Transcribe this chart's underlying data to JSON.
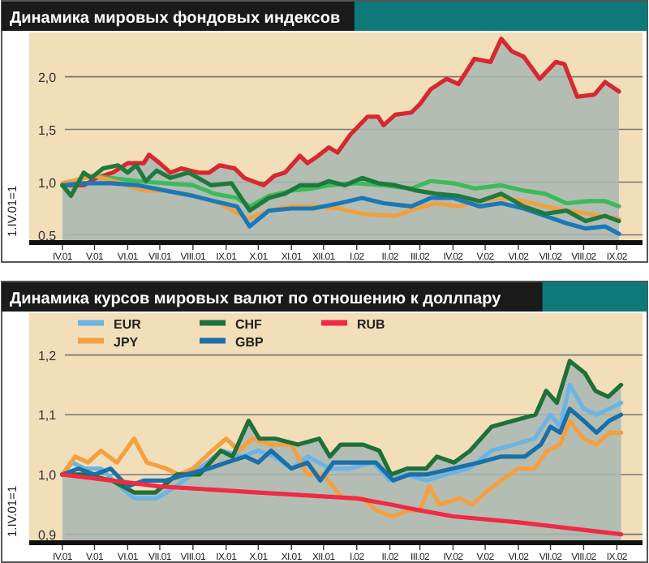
{
  "chart_data": [
    {
      "type": "line",
      "title": "Динамика мировых фондовых индексов",
      "ylabel": "1.IV.01=1",
      "xlim": [
        "2001-03-01",
        "2002-09-25"
      ],
      "ylim": [
        0.45,
        2.42
      ],
      "xticks": [
        {
          "value": "2001-04-01",
          "label": "IV.01"
        },
        {
          "value": "2001-05-01",
          "label": "V.01"
        },
        {
          "value": "2001-06-01",
          "label": "VI.01"
        },
        {
          "value": "2001-07-01",
          "label": "VII.01"
        },
        {
          "value": "2001-08-01",
          "label": "VIII.01"
        },
        {
          "value": "2001-09-01",
          "label": "IX.01"
        },
        {
          "value": "2001-10-01",
          "label": "X.01"
        },
        {
          "value": "2001-11-01",
          "label": "XI.01"
        },
        {
          "value": "2001-12-01",
          "label": "XII.01"
        },
        {
          "value": "2002-01-01",
          "label": "I.02"
        },
        {
          "value": "2002-02-01",
          "label": "II.02"
        },
        {
          "value": "2002-03-01",
          "label": "III.02"
        },
        {
          "value": "2002-04-01",
          "label": "IV.02"
        },
        {
          "value": "2002-05-01",
          "label": "V.02"
        },
        {
          "value": "2002-06-01",
          "label": "VI.02"
        },
        {
          "value": "2002-07-01",
          "label": "VII.02"
        },
        {
          "value": "2002-08-01",
          "label": "VIII.02"
        },
        {
          "value": "2002-09-01",
          "label": "IX.02"
        }
      ],
      "yticks": [
        {
          "value": 0.5,
          "label": "0,5"
        },
        {
          "value": 1,
          "label": "1,0"
        },
        {
          "value": 1.5,
          "label": "1,5"
        },
        {
          "value": 2,
          "label": "2,0"
        }
      ],
      "grid": "y",
      "legend": false,
      "series": [
        {
          "type": "area",
          "color": "#d7282f",
          "x": [
            "2001-04-01",
            "2001-04-21",
            "2001-05-03",
            "2001-05-18",
            "2001-06-01",
            "2001-06-16",
            "2001-06-21",
            "2001-07-01",
            "2001-07-11",
            "2001-07-21",
            "2001-08-06",
            "2001-08-16",
            "2001-08-26",
            "2001-09-09",
            "2001-09-18",
            "2001-10-06",
            "2001-10-16",
            "2001-10-26",
            "2001-11-09",
            "2001-11-16",
            "2001-11-26",
            "2001-12-06",
            "2001-12-14",
            "2001-12-26",
            "2002-01-11",
            "2002-01-21",
            "2002-01-26",
            "2002-02-06",
            "2002-02-21",
            "2002-03-01",
            "2002-03-11",
            "2002-03-26",
            "2002-04-06",
            "2002-04-21",
            "2002-05-06",
            "2002-05-16",
            "2002-05-26",
            "2002-06-06",
            "2002-06-21",
            "2002-07-06",
            "2002-07-14",
            "2002-07-26",
            "2002-08-11",
            "2002-08-21",
            "2002-09-03"
          ],
          "values": [
            0.97,
            0.97,
            1.04,
            1.09,
            1.18,
            1.18,
            1.26,
            1.18,
            1.09,
            1.13,
            1.09,
            1.09,
            1.16,
            1.13,
            1.04,
            0.97,
            1.06,
            1.09,
            1.25,
            1.18,
            1.25,
            1.33,
            1.28,
            1.45,
            1.62,
            1.62,
            1.54,
            1.64,
            1.66,
            1.74,
            1.88,
            1.98,
            1.93,
            2.17,
            2.14,
            2.36,
            2.24,
            2.19,
            1.98,
            2.14,
            2.12,
            1.81,
            1.83,
            1.95,
            1.86
          ]
        },
        {
          "color": "#3dba5a",
          "x": [
            "2001-04-01",
            "2001-04-26",
            "2001-05-16",
            "2001-06-11",
            "2001-07-06",
            "2001-08-01",
            "2001-08-21",
            "2001-09-11",
            "2001-09-23",
            "2001-10-11",
            "2001-11-01",
            "2001-11-21",
            "2001-12-06",
            "2002-01-01",
            "2002-01-26",
            "2002-02-21",
            "2002-03-11",
            "2002-04-01",
            "2002-04-21",
            "2002-05-16",
            "2002-06-06",
            "2002-06-26",
            "2002-07-16",
            "2002-08-06",
            "2002-08-21",
            "2002-09-03"
          ],
          "values": [
            0.97,
            1.06,
            1.04,
            1.01,
            0.99,
            0.97,
            0.89,
            0.85,
            0.77,
            0.87,
            0.92,
            0.94,
            0.97,
            0.99,
            0.97,
            0.94,
            1.01,
            0.99,
            0.94,
            0.97,
            0.92,
            0.89,
            0.8,
            0.82,
            0.82,
            0.77
          ]
        },
        {
          "color": "#f0a040",
          "x": [
            "2001-04-01",
            "2001-05-01",
            "2001-05-26",
            "2001-06-16",
            "2001-07-06",
            "2001-08-01",
            "2001-08-26",
            "2001-09-21",
            "2001-10-11",
            "2001-11-01",
            "2001-11-21",
            "2001-12-16",
            "2002-01-06",
            "2002-02-06",
            "2002-02-26",
            "2002-03-16",
            "2002-04-06",
            "2002-04-26",
            "2002-05-16",
            "2002-06-06",
            "2002-06-26",
            "2002-07-16",
            "2002-08-06",
            "2002-09-03"
          ],
          "values": [
            0.99,
            1.06,
            0.99,
            0.92,
            0.92,
            0.87,
            0.8,
            0.65,
            0.73,
            0.77,
            0.77,
            0.75,
            0.7,
            0.68,
            0.75,
            0.8,
            0.77,
            0.82,
            0.85,
            0.82,
            0.77,
            0.73,
            0.7,
            0.65
          ]
        },
        {
          "color": "#1a79b8",
          "x": [
            "2001-04-01",
            "2001-04-21",
            "2001-05-16",
            "2001-06-11",
            "2001-07-06",
            "2001-08-01",
            "2001-08-21",
            "2001-09-11",
            "2001-09-23",
            "2001-10-11",
            "2001-11-01",
            "2001-11-21",
            "2001-12-16",
            "2002-01-06",
            "2002-01-26",
            "2002-02-21",
            "2002-03-11",
            "2002-04-01",
            "2002-04-26",
            "2002-05-16",
            "2002-06-06",
            "2002-06-26",
            "2002-07-16",
            "2002-08-03",
            "2002-08-21",
            "2002-09-03"
          ],
          "values": [
            0.97,
            0.99,
            0.99,
            0.97,
            0.92,
            0.87,
            0.82,
            0.77,
            0.58,
            0.73,
            0.75,
            0.75,
            0.8,
            0.85,
            0.8,
            0.77,
            0.85,
            0.85,
            0.77,
            0.8,
            0.75,
            0.68,
            0.61,
            0.56,
            0.58,
            0.51
          ]
        },
        {
          "color": "#1e7a3c",
          "x": [
            "2001-04-01",
            "2001-04-09",
            "2001-04-21",
            "2001-04-28",
            "2001-05-09",
            "2001-05-23",
            "2001-06-01",
            "2001-06-09",
            "2001-06-18",
            "2001-06-28",
            "2001-07-11",
            "2001-07-28",
            "2001-08-18",
            "2001-09-06",
            "2001-09-23",
            "2001-10-11",
            "2001-10-26",
            "2001-11-09",
            "2001-11-26",
            "2001-12-06",
            "2001-12-21",
            "2002-01-06",
            "2002-01-21",
            "2002-02-06",
            "2002-02-26",
            "2002-03-16",
            "2002-04-06",
            "2002-04-26",
            "2002-05-16",
            "2002-06-06",
            "2002-06-26",
            "2002-07-16",
            "2002-08-03",
            "2002-08-21",
            "2002-09-03"
          ],
          "values": [
            0.97,
            0.87,
            1.09,
            1.04,
            1.13,
            1.16,
            1.09,
            1.16,
            1.01,
            1.11,
            1.04,
            1.09,
            0.97,
            0.99,
            0.73,
            0.85,
            0.89,
            0.97,
            0.97,
            1.01,
            0.97,
            1.04,
            0.99,
            0.97,
            0.92,
            0.89,
            0.87,
            0.82,
            0.89,
            0.77,
            0.7,
            0.73,
            0.63,
            0.68,
            0.63
          ]
        }
      ]
    },
    {
      "type": "line",
      "title": "Динамика курсов мировых валют по отношению к доллпару",
      "ylabel": "1.IV.01=1",
      "xlim": [
        "2001-03-01",
        "2002-09-25"
      ],
      "ylim": [
        0.89,
        1.27
      ],
      "xticks": [
        {
          "value": "2001-04-01",
          "label": "IV.01"
        },
        {
          "value": "2001-05-01",
          "label": "V.01"
        },
        {
          "value": "2001-06-01",
          "label": "VI.01"
        },
        {
          "value": "2001-07-01",
          "label": "VII.01"
        },
        {
          "value": "2001-08-01",
          "label": "VIII.01"
        },
        {
          "value": "2001-09-01",
          "label": "IX.01"
        },
        {
          "value": "2001-10-01",
          "label": "X.01"
        },
        {
          "value": "2001-11-01",
          "label": "XI.01"
        },
        {
          "value": "2001-12-01",
          "label": "XII.01"
        },
        {
          "value": "2002-01-01",
          "label": "I.02"
        },
        {
          "value": "2002-02-01",
          "label": "II.02"
        },
        {
          "value": "2002-03-01",
          "label": "III.02"
        },
        {
          "value": "2002-04-01",
          "label": "IV.02"
        },
        {
          "value": "2002-05-01",
          "label": "V.02"
        },
        {
          "value": "2002-06-01",
          "label": "VI.02"
        },
        {
          "value": "2002-07-01",
          "label": "VII.02"
        },
        {
          "value": "2002-08-01",
          "label": "VIII.02"
        },
        {
          "value": "2002-09-01",
          "label": "IX.02"
        }
      ],
      "yticks": [
        {
          "value": 0.9,
          "label": "0,9"
        },
        {
          "value": 1,
          "label": "1,0"
        },
        {
          "value": 1.1,
          "label": "1,1"
        },
        {
          "value": 1.2,
          "label": "1,2"
        }
      ],
      "grid": "y",
      "legend": "top left",
      "series": [
        {
          "name": "EUR",
          "color": "#6cb4e4",
          "x": [
            "2001-04-01",
            "2001-04-10",
            "2001-04-22",
            "2001-05-07",
            "2001-05-25",
            "2001-06-07",
            "2001-06-28",
            "2001-07-16",
            "2001-08-07",
            "2001-08-28",
            "2001-09-16",
            "2001-10-01",
            "2001-10-16",
            "2001-11-01",
            "2001-11-16",
            "2001-12-07",
            "2001-12-25",
            "2002-01-16",
            "2002-02-01",
            "2002-02-16",
            "2002-03-07",
            "2002-03-25",
            "2002-04-16",
            "2002-05-07",
            "2002-05-28",
            "2002-06-16",
            "2002-07-01",
            "2002-07-10",
            "2002-07-19",
            "2002-08-01",
            "2002-08-13",
            "2002-08-25",
            "2002-09-05"
          ],
          "values": [
            1,
            1.02,
            1.01,
            1.01,
            0.98,
            0.96,
            0.96,
            0.98,
            1.01,
            1.04,
            1.03,
            1.04,
            1.03,
            1.01,
            1.03,
            1.01,
            1.01,
            1.02,
            0.99,
            1,
            0.99,
            1,
            1.01,
            1.04,
            1.05,
            1.06,
            1.1,
            1.08,
            1.15,
            1.11,
            1.1,
            1.11,
            1.12
          ]
        },
        {
          "name": "JPY",
          "color": "#f4a040",
          "x": [
            "2001-04-01",
            "2001-04-13",
            "2001-04-25",
            "2001-05-07",
            "2001-05-22",
            "2001-06-07",
            "2001-06-19",
            "2001-07-07",
            "2001-07-19",
            "2001-08-01",
            "2001-08-19",
            "2001-09-01",
            "2001-09-13",
            "2001-09-25",
            "2001-10-13",
            "2001-11-01",
            "2001-11-16",
            "2001-12-01",
            "2001-12-19",
            "2002-01-07",
            "2002-01-19",
            "2002-02-04",
            "2002-02-19",
            "2002-03-01",
            "2002-03-10",
            "2002-03-19",
            "2002-04-07",
            "2002-04-19",
            "2002-05-01",
            "2002-05-16",
            "2002-06-01",
            "2002-06-16",
            "2002-06-28",
            "2002-07-10",
            "2002-07-19",
            "2002-08-01",
            "2002-08-13",
            "2002-08-25",
            "2002-09-05"
          ],
          "values": [
            1,
            1.03,
            1.02,
            1.04,
            1.02,
            1.06,
            1.02,
            1.01,
            1,
            1.01,
            1.04,
            1.06,
            1.04,
            1.06,
            1.05,
            1.05,
            1,
            1,
            0.96,
            0.96,
            0.94,
            0.93,
            0.94,
            0.94,
            0.98,
            0.95,
            0.96,
            0.95,
            0.97,
            0.99,
            1.01,
            1.01,
            1.04,
            1.05,
            1.09,
            1.06,
            1.05,
            1.07,
            1.07
          ]
        },
        {
          "name": "CHF",
          "type": "area",
          "color": "#1e7038",
          "x": [
            "2001-04-01",
            "2001-04-22",
            "2001-05-17",
            "2001-06-07",
            "2001-06-27",
            "2001-07-17",
            "2001-08-07",
            "2001-08-27",
            "2001-09-07",
            "2001-09-22",
            "2001-10-02",
            "2001-10-17",
            "2001-11-07",
            "2001-11-27",
            "2001-12-07",
            "2001-12-17",
            "2002-01-07",
            "2002-01-22",
            "2002-02-02",
            "2002-02-17",
            "2002-03-07",
            "2002-03-17",
            "2002-04-02",
            "2002-04-17",
            "2002-05-07",
            "2002-05-27",
            "2002-06-17",
            "2002-06-27",
            "2002-07-07",
            "2002-07-19",
            "2002-08-02",
            "2002-08-12",
            "2002-08-24",
            "2002-09-05"
          ],
          "values": [
            1,
            1,
            0.99,
            0.97,
            0.97,
            1,
            1,
            1.04,
            1.03,
            1.09,
            1.06,
            1.06,
            1.05,
            1.06,
            1.03,
            1.05,
            1.05,
            1.04,
            1,
            1.01,
            1.01,
            1.03,
            1.02,
            1.04,
            1.08,
            1.09,
            1.1,
            1.14,
            1.12,
            1.19,
            1.17,
            1.14,
            1.13,
            1.15
          ]
        },
        {
          "name": "GBP",
          "color": "#1a6fa8",
          "x": [
            "2001-04-01",
            "2001-04-16",
            "2001-05-01",
            "2001-05-16",
            "2001-06-01",
            "2001-06-16",
            "2001-07-07",
            "2001-07-25",
            "2001-08-16",
            "2001-09-01",
            "2001-09-19",
            "2001-10-01",
            "2001-10-13",
            "2001-11-01",
            "2001-11-16",
            "2001-11-28",
            "2001-12-10",
            "2002-01-01",
            "2002-01-19",
            "2002-02-04",
            "2002-02-19",
            "2002-03-07",
            "2002-04-01",
            "2002-04-25",
            "2002-05-16",
            "2002-06-07",
            "2002-06-22",
            "2002-07-01",
            "2002-07-10",
            "2002-07-19",
            "2002-08-01",
            "2002-08-13",
            "2002-08-25",
            "2002-09-05"
          ],
          "values": [
            1,
            1.01,
            1,
            1.01,
            0.98,
            0.99,
            0.99,
            1,
            1.01,
            1.02,
            1.03,
            1.02,
            1.04,
            1.01,
            1.02,
            0.99,
            1.02,
            1.02,
            1.02,
            0.99,
            1,
            1,
            1.01,
            1.02,
            1.03,
            1.03,
            1.05,
            1.08,
            1.07,
            1.11,
            1.09,
            1.07,
            1.09,
            1.1
          ]
        },
        {
          "name": "RUB",
          "color": "#ee2a44",
          "x": [
            "2001-04-01",
            "2001-07-01",
            "2001-10-01",
            "2002-01-01",
            "2002-02-01",
            "2002-03-01",
            "2002-04-01",
            "2002-06-01",
            "2002-09-05"
          ],
          "values": [
            1,
            0.98,
            0.97,
            0.96,
            0.95,
            0.94,
            0.93,
            0.92,
            0.9
          ]
        }
      ]
    }
  ]
}
